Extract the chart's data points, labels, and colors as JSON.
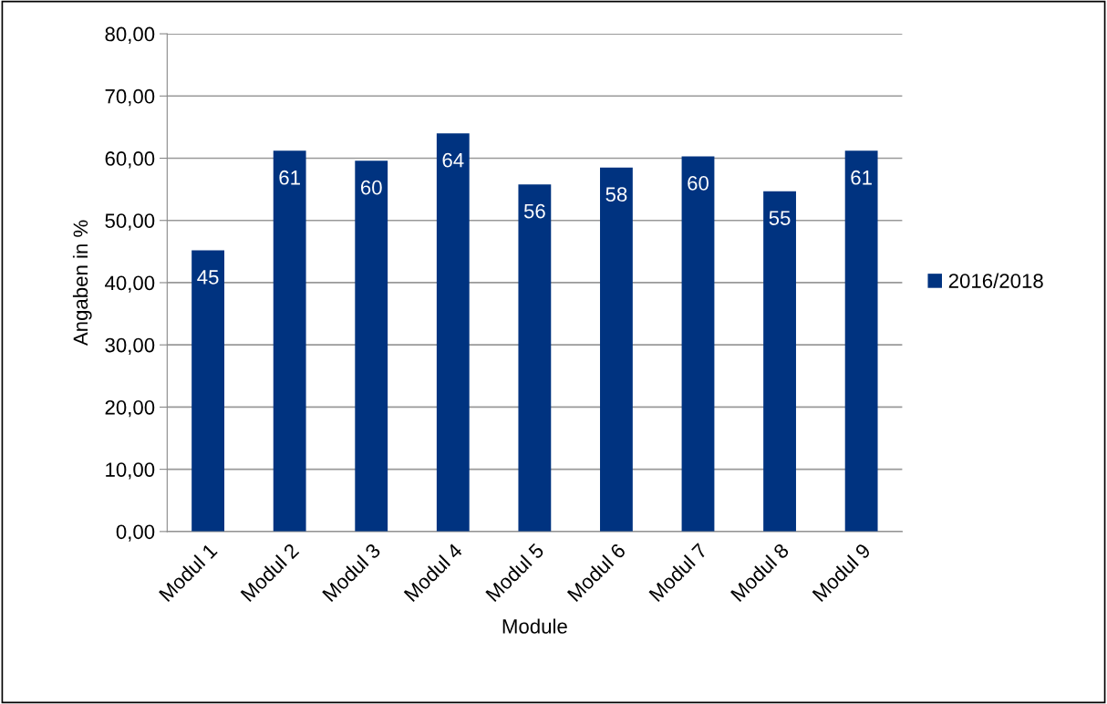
{
  "chart_data": {
    "type": "bar",
    "xlabel": "Module",
    "ylabel": "Angaben in %",
    "categories": [
      "Modul 1",
      "Modul 2",
      "Modul 3",
      "Modul 4",
      "Modul 5",
      "Modul 6",
      "Modul 7",
      "Modul 8",
      "Modul 9"
    ],
    "series": [
      {
        "name": "2016/2018",
        "color": "#003380",
        "values": [
          45.2,
          61.2,
          59.6,
          64.0,
          55.8,
          58.5,
          60.3,
          54.7,
          61.2
        ],
        "value_labels": [
          "45",
          "61",
          "60",
          "64",
          "56",
          "58",
          "60",
          "55",
          "61"
        ]
      }
    ],
    "ylim": [
      0,
      80
    ],
    "yticks": [
      {
        "value": 0,
        "label": "0,00"
      },
      {
        "value": 10,
        "label": "10,00"
      },
      {
        "value": 20,
        "label": "20,00"
      },
      {
        "value": 30,
        "label": "30,00"
      },
      {
        "value": 40,
        "label": "40,00"
      },
      {
        "value": 50,
        "label": "50,00"
      },
      {
        "value": 60,
        "label": "60,00"
      },
      {
        "value": 70,
        "label": "70,00"
      },
      {
        "value": 80,
        "label": "80,00"
      }
    ],
    "grid": "y",
    "legend": "right"
  }
}
